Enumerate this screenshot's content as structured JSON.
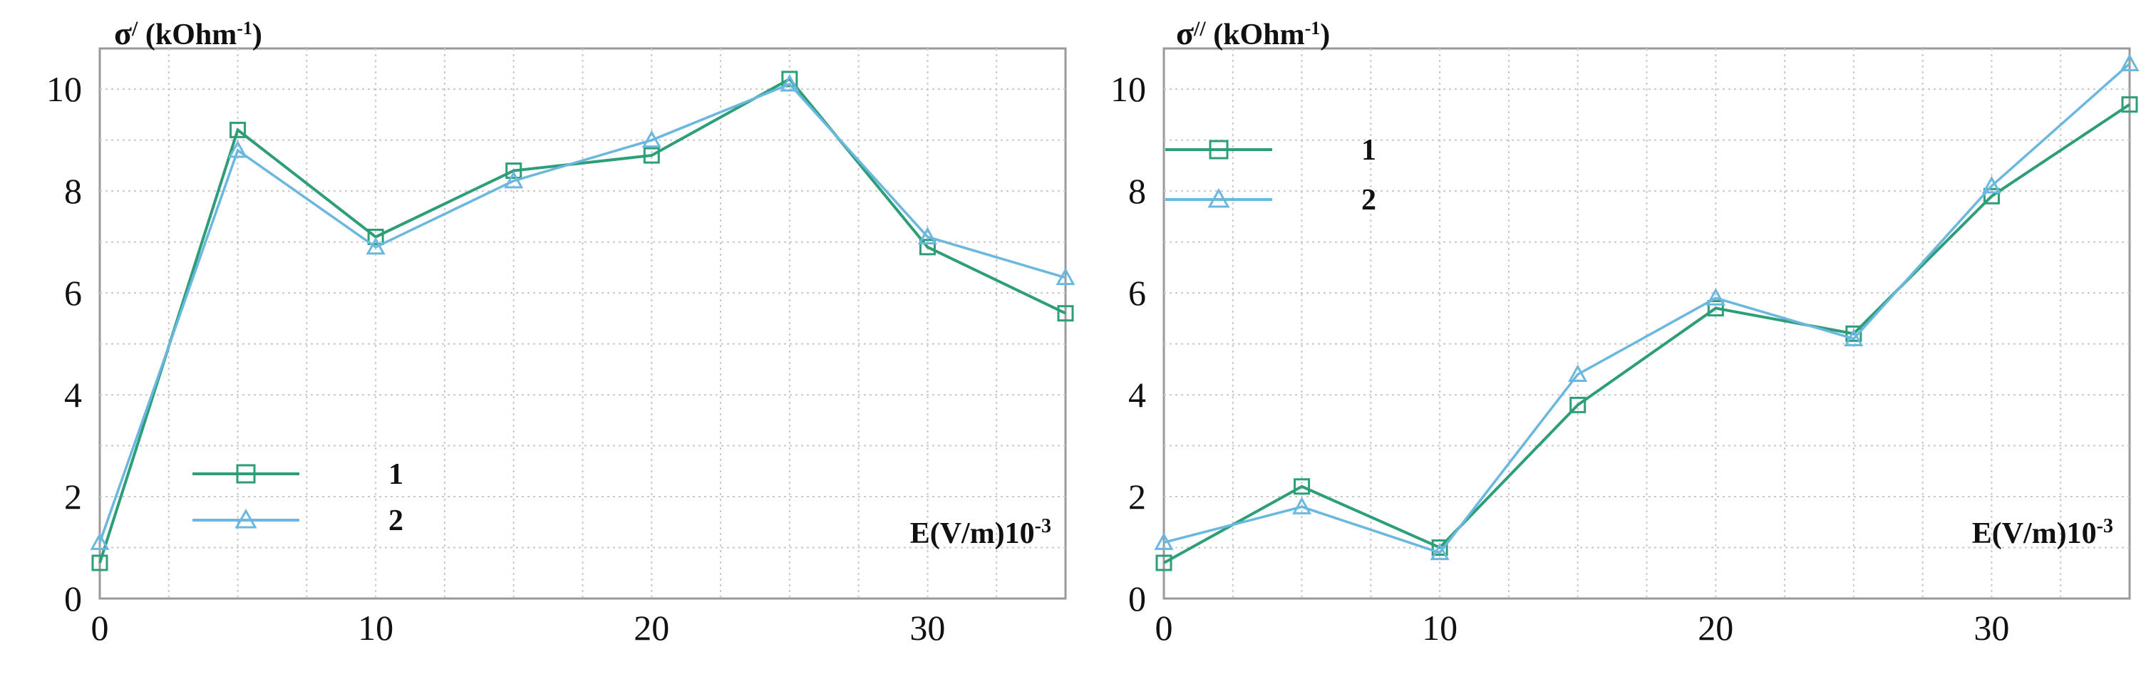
{
  "chart_data": [
    {
      "type": "line",
      "ylabel_symbol": "σ",
      "ylabel_prime": "/",
      "ylabel_unit": "(kOhm",
      "ylabel_exp": "-1",
      "ylabel_close": ")",
      "xlabel_main": "E(V/m)10",
      "xlabel_exp": "-3",
      "xlim": [
        0,
        35
      ],
      "ylim": [
        0,
        10.8
      ],
      "xticks": [
        0,
        10,
        20,
        30
      ],
      "xtick_labels": [
        "0",
        "10",
        "20",
        "30"
      ],
      "yticks": [
        0,
        2,
        4,
        6,
        8,
        10
      ],
      "ytick_labels": [
        "0",
        "2",
        "4",
        "6",
        "8",
        "10"
      ],
      "x": [
        0,
        5,
        10,
        15,
        20,
        25,
        30,
        35
      ],
      "series": [
        {
          "name": "1",
          "marker": "square",
          "color": "#2e9e78",
          "values": [
            0.7,
            9.2,
            7.1,
            8.4,
            8.7,
            10.2,
            6.9,
            5.6
          ]
        },
        {
          "name": "2",
          "marker": "triangle",
          "color": "#6ab7e0",
          "values": [
            1.1,
            8.8,
            6.9,
            8.2,
            9.0,
            10.1,
            7.1,
            6.3
          ]
        }
      ],
      "legend": "lower-left",
      "grid": true
    },
    {
      "type": "line",
      "ylabel_symbol": "σ",
      "ylabel_prime": "//",
      "ylabel_unit": "(kOhm",
      "ylabel_exp": "-1",
      "ylabel_close": ")",
      "xlabel_main": "E(V/m)10",
      "xlabel_exp": "-3",
      "xlim": [
        0,
        35
      ],
      "ylim": [
        0,
        10.8
      ],
      "xticks": [
        0,
        10,
        20,
        30
      ],
      "xtick_labels": [
        "0",
        "10",
        "20",
        "30"
      ],
      "yticks": [
        0,
        2,
        4,
        6,
        8,
        10
      ],
      "ytick_labels": [
        "0",
        "2",
        "4",
        "6",
        "8",
        "10"
      ],
      "x": [
        0,
        5,
        10,
        15,
        20,
        25,
        30,
        35
      ],
      "series": [
        {
          "name": "1",
          "marker": "square",
          "color": "#2e9e78",
          "values": [
            0.7,
            2.2,
            1.0,
            3.8,
            5.7,
            5.2,
            7.9,
            9.7
          ]
        },
        {
          "name": "2",
          "marker": "triangle",
          "color": "#6ab7e0",
          "values": [
            1.1,
            1.8,
            0.9,
            4.4,
            5.9,
            5.1,
            8.1,
            10.5
          ]
        }
      ],
      "legend": "upper-left",
      "grid": true
    }
  ]
}
